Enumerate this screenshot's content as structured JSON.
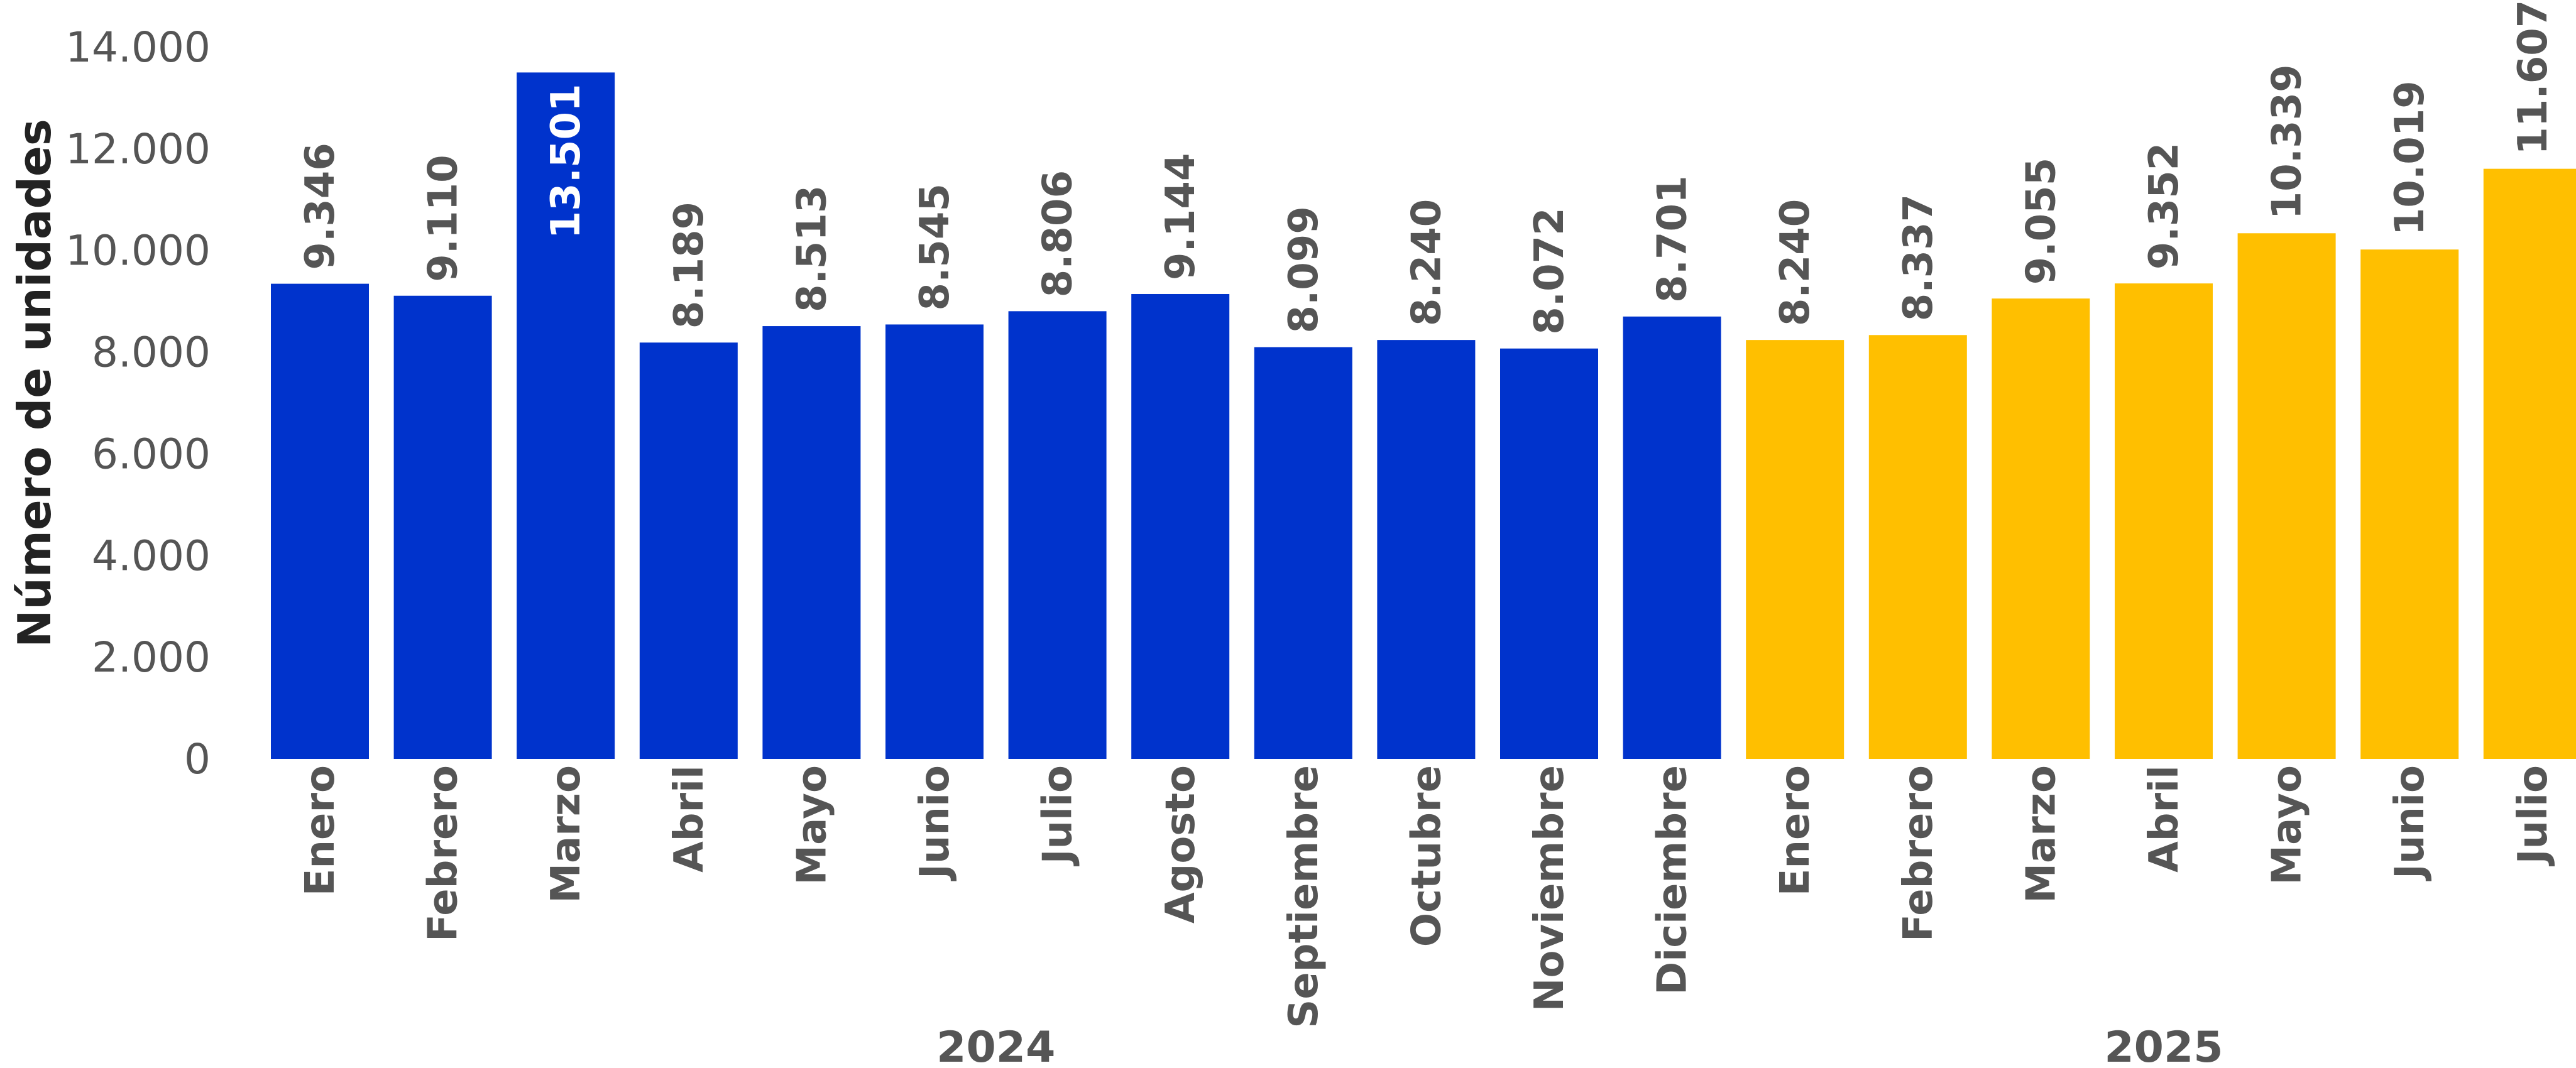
{
  "chart_data": {
    "type": "bar",
    "title": "",
    "ylabel": "Número de unidades",
    "xlabel": "",
    "ylim": [
      0,
      14000
    ],
    "yticks": [
      "0",
      "2.000",
      "4.000",
      "6.000",
      "8.000",
      "10.000",
      "12.000",
      "14.000"
    ],
    "ytick_values": [
      0,
      2000,
      4000,
      6000,
      8000,
      10000,
      12000,
      14000
    ],
    "grid": false,
    "groups": [
      {
        "label": "2024",
        "color": "#0033CC",
        "categories": [
          "Enero",
          "Febrero",
          "Marzo",
          "Abril",
          "Mayo",
          "Junio",
          "Julio",
          "Agosto",
          "Septiembre",
          "Octubre",
          "Noviembre",
          "Diciembre"
        ],
        "values": [
          9346,
          9110,
          13501,
          8189,
          8513,
          8545,
          8806,
          9144,
          8099,
          8240,
          8072,
          8701
        ],
        "value_labels": [
          "9.346",
          "9.110",
          "13.501",
          "8.189",
          "8.513",
          "8.545",
          "8.806",
          "9.144",
          "8.099",
          "8.240",
          "8.072",
          "8.701"
        ]
      },
      {
        "label": "2025",
        "color": "#FFBF00",
        "categories": [
          "Enero",
          "Febrero",
          "Marzo",
          "Abril",
          "Mayo",
          "Junio",
          "Julio"
        ],
        "values": [
          8240,
          8337,
          9055,
          9352,
          10339,
          10019,
          11607
        ],
        "value_labels": [
          "8.240",
          "8.337",
          "9.055",
          "9.352",
          "10.339",
          "10.019",
          "11.607"
        ]
      }
    ],
    "label_color": "#555555",
    "inside_label_color": "#ffffff",
    "inside_label_index": [
      0,
      2
    ]
  }
}
